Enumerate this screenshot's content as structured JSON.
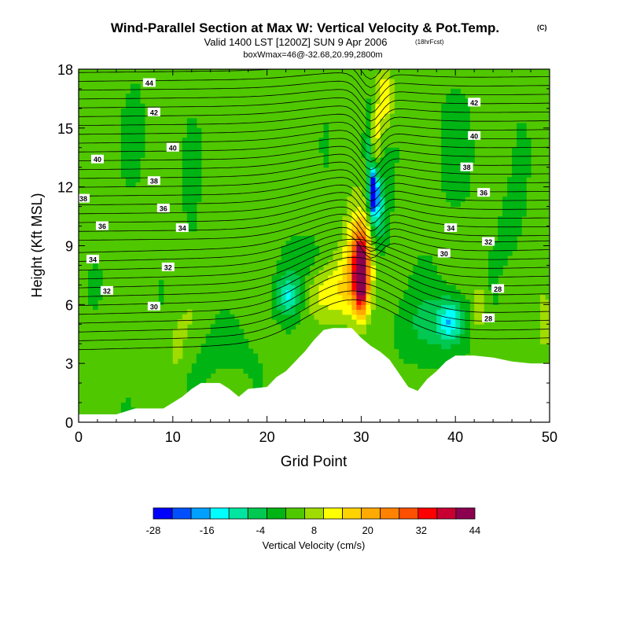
{
  "chart_data": {
    "type": "heatmap",
    "title": "Wind-Parallel Section at Max W: Vertical Velocity & Pot.Temp.",
    "title_mark": "(C)",
    "subtitle": "Valid 1400 LST [1200Z] SUN 9 Apr 2006",
    "subtitle_note": "(18hrFcst)",
    "subtitle2": "boxWmax=46@-32.68,20.99,2800m",
    "xlabel": "Grid Point",
    "ylabel": "Height (Kft MSL)",
    "xlim": [
      0,
      50
    ],
    "ylim": [
      0,
      18
    ],
    "xticks": [
      0,
      10,
      20,
      30,
      40,
      50
    ],
    "yticks": [
      0,
      3,
      6,
      9,
      12,
      15,
      18
    ],
    "colorbar": {
      "label": "Vertical Velocity (cm/s)",
      "tick_labels": [
        -28,
        -16,
        -4,
        8,
        20,
        32,
        44
      ],
      "levels": [
        -28,
        -24,
        -20,
        -16,
        -12,
        -8,
        -4,
        0,
        4,
        8,
        12,
        16,
        20,
        24,
        28,
        32,
        36,
        40,
        44
      ],
      "colors": [
        "#0000ff",
        "#0050ff",
        "#00a0ff",
        "#00ffff",
        "#00e6a0",
        "#00c850",
        "#00b414",
        "#50c800",
        "#a0dc00",
        "#ffff00",
        "#ffd200",
        "#ffaa00",
        "#ff8200",
        "#ff5000",
        "#ff0000",
        "#c80032",
        "#8c0050"
      ]
    },
    "terrain": [
      {
        "x": 0,
        "h": 0.4
      },
      {
        "x": 2,
        "h": 0.4
      },
      {
        "x": 4,
        "h": 0.4
      },
      {
        "x": 6,
        "h": 0.7
      },
      {
        "x": 9,
        "h": 0.7
      },
      {
        "x": 10,
        "h": 1.0
      },
      {
        "x": 11,
        "h": 1.3
      },
      {
        "x": 12,
        "h": 1.7
      },
      {
        "x": 13,
        "h": 2.0
      },
      {
        "x": 15,
        "h": 2.0
      },
      {
        "x": 16,
        "h": 1.7
      },
      {
        "x": 17,
        "h": 1.3
      },
      {
        "x": 18,
        "h": 1.7
      },
      {
        "x": 20,
        "h": 1.8
      },
      {
        "x": 21,
        "h": 2.3
      },
      {
        "x": 22,
        "h": 2.6
      },
      {
        "x": 23,
        "h": 3.1
      },
      {
        "x": 24,
        "h": 3.6
      },
      {
        "x": 25,
        "h": 4.2
      },
      {
        "x": 26,
        "h": 4.7
      },
      {
        "x": 27,
        "h": 4.8
      },
      {
        "x": 29,
        "h": 4.8
      },
      {
        "x": 30,
        "h": 4.3
      },
      {
        "x": 31,
        "h": 3.9
      },
      {
        "x": 32,
        "h": 3.6
      },
      {
        "x": 33,
        "h": 3.2
      },
      {
        "x": 34,
        "h": 2.5
      },
      {
        "x": 35,
        "h": 1.8
      },
      {
        "x": 36,
        "h": 1.6
      },
      {
        "x": 37,
        "h": 2.2
      },
      {
        "x": 38,
        "h": 2.6
      },
      {
        "x": 39,
        "h": 3.1
      },
      {
        "x": 40,
        "h": 3.4
      },
      {
        "x": 42,
        "h": 3.4
      },
      {
        "x": 44,
        "h": 3.3
      },
      {
        "x": 46,
        "h": 3.1
      },
      {
        "x": 48,
        "h": 3.0
      },
      {
        "x": 50,
        "h": 3.0
      }
    ],
    "w_features": [
      {
        "x": 30,
        "y": 7.5,
        "sx": 0.7,
        "sy": 1.8,
        "w": 36
      },
      {
        "x": 29.8,
        "y": 8.5,
        "sx": 1.4,
        "sy": 2.5,
        "w": 18
      },
      {
        "x": 28.5,
        "y": 7.0,
        "sx": 2.0,
        "sy": 1.7,
        "w": 10
      },
      {
        "x": 25.5,
        "y": 6.8,
        "sx": 2.2,
        "sy": 1.5,
        "w": 8
      },
      {
        "x": 31.5,
        "y": 14.0,
        "sx": 0.6,
        "sy": 2.0,
        "w": 10
      },
      {
        "x": 32.5,
        "y": 16.5,
        "sx": 0.8,
        "sy": 1.5,
        "w": 12
      },
      {
        "x": 31.3,
        "y": 11.8,
        "sx": 0.45,
        "sy": 1.3,
        "w": -28
      },
      {
        "x": 31.8,
        "y": 11.0,
        "sx": 0.9,
        "sy": 2.2,
        "w": -12
      },
      {
        "x": 30.8,
        "y": 14.0,
        "sx": 0.5,
        "sy": 2.0,
        "w": -8
      },
      {
        "x": 39.5,
        "y": 5.2,
        "sx": 1.3,
        "sy": 1.0,
        "w": -14
      },
      {
        "x": 37.5,
        "y": 5.0,
        "sx": 3.5,
        "sy": 1.8,
        "w": -6
      },
      {
        "x": 22.2,
        "y": 6.4,
        "sx": 1.4,
        "sy": 1.0,
        "w": -12
      },
      {
        "x": 24.5,
        "y": 7.8,
        "sx": 3.0,
        "sy": 1.5,
        "w": -6
      },
      {
        "x": 10.5,
        "y": 3.8,
        "sx": 0.7,
        "sy": 1.0,
        "w": 6
      },
      {
        "x": 11.5,
        "y": 5.0,
        "sx": 1.5,
        "sy": 1.5,
        "w": 3
      },
      {
        "x": 42.5,
        "y": 5.8,
        "sx": 0.8,
        "sy": 1.2,
        "w": 8
      },
      {
        "x": 49.5,
        "y": 5.2,
        "sx": 0.8,
        "sy": 1.5,
        "w": 7
      },
      {
        "x": 15,
        "y": 3.8,
        "sx": 5.0,
        "sy": 1.8,
        "w": -2
      },
      {
        "x": 17,
        "y": 10.0,
        "sx": 6.0,
        "sy": 4.0,
        "w": 2
      },
      {
        "x": 12,
        "y": 11.0,
        "sx": 1.0,
        "sy": 3.0,
        "w": -3
      },
      {
        "x": 6,
        "y": 15.0,
        "sx": 1.0,
        "sy": 2.5,
        "w": -2
      },
      {
        "x": 40,
        "y": 14.0,
        "sx": 2.0,
        "sy": 3.0,
        "w": -2
      },
      {
        "x": 46,
        "y": 10.0,
        "sx": 1.5,
        "sy": 2.5,
        "w": -2
      }
    ],
    "theta_labels": [
      {
        "x": 7.5,
        "y": 17.3,
        "v": 44
      },
      {
        "x": 8,
        "y": 15.8,
        "v": 42
      },
      {
        "x": 10,
        "y": 14.0,
        "v": 40
      },
      {
        "x": 2,
        "y": 13.4,
        "v": 40
      },
      {
        "x": 8,
        "y": 12.3,
        "v": 38
      },
      {
        "x": 0.5,
        "y": 11.4,
        "v": 38
      },
      {
        "x": 9,
        "y": 10.9,
        "v": 36
      },
      {
        "x": 2.5,
        "y": 10.0,
        "v": 36
      },
      {
        "x": 11,
        "y": 9.9,
        "v": 34
      },
      {
        "x": 1.5,
        "y": 8.3,
        "v": 34
      },
      {
        "x": 9.5,
        "y": 7.9,
        "v": 32
      },
      {
        "x": 3,
        "y": 6.7,
        "v": 32
      },
      {
        "x": 8,
        "y": 5.9,
        "v": 30
      },
      {
        "x": 42,
        "y": 16.3,
        "v": 42
      },
      {
        "x": 42,
        "y": 14.6,
        "v": 40
      },
      {
        "x": 41.2,
        "y": 13.0,
        "v": 38
      },
      {
        "x": 43,
        "y": 11.7,
        "v": 36
      },
      {
        "x": 39.5,
        "y": 9.9,
        "v": 34
      },
      {
        "x": 43.5,
        "y": 9.2,
        "v": 32
      },
      {
        "x": 38.8,
        "y": 8.6,
        "v": 30
      },
      {
        "x": 44.5,
        "y": 6.8,
        "v": 28
      },
      {
        "x": 43.5,
        "y": 5.3,
        "v": 28
      }
    ]
  }
}
